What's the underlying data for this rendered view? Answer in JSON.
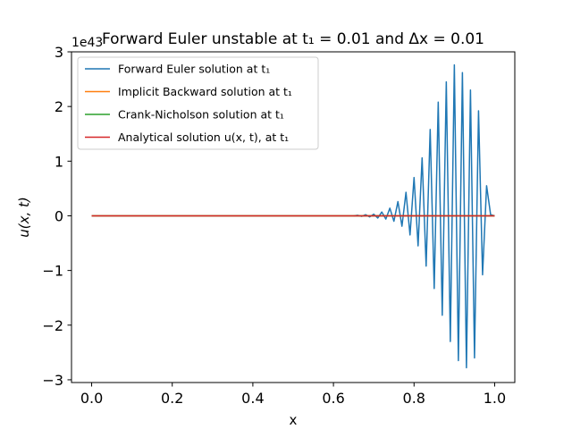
{
  "chart_data": {
    "type": "line",
    "title": "Forward Euler unstable at t₁ = 0.01 and Δx = 0.01",
    "xlabel": "x",
    "ylabel": "u(x, t)",
    "offset_text": "1e43",
    "xlim": [
      -0.05,
      1.05
    ],
    "ylim": [
      -3.05,
      3.0
    ],
    "xticks": [
      0.0,
      0.2,
      0.4,
      0.6,
      0.8,
      1.0
    ],
    "xtick_labels": [
      "0.0",
      "0.2",
      "0.4",
      "0.6",
      "0.8",
      "1.0"
    ],
    "yticks": [
      3,
      2,
      1,
      0,
      -1,
      -2,
      -3
    ],
    "ytick_labels": [
      "3",
      "2",
      "1",
      "0",
      "−1",
      "−2",
      "−3"
    ],
    "grid": false,
    "legend_position": "upper-left",
    "series": [
      {
        "name": "Forward Euler solution at t₁",
        "color": "#1f77b4",
        "x": [
          0.65,
          0.66,
          0.67,
          0.68,
          0.69,
          0.7,
          0.71,
          0.72,
          0.73,
          0.74,
          0.75,
          0.76,
          0.77,
          0.78,
          0.79,
          0.8,
          0.81,
          0.82,
          0.83,
          0.84,
          0.85,
          0.86,
          0.87,
          0.88,
          0.89,
          0.9,
          0.91,
          0.92,
          0.93,
          0.94,
          0.95,
          0.96,
          0.97,
          0.98,
          0.99,
          1.0
        ],
        "y": [
          0,
          0.01,
          -0.01,
          0.02,
          -0.02,
          0.03,
          -0.04,
          0.07,
          -0.06,
          0.14,
          -0.1,
          0.26,
          -0.19,
          0.43,
          -0.35,
          0.7,
          -0.55,
          1.06,
          -0.92,
          1.58,
          -1.33,
          2.08,
          -1.82,
          2.45,
          -2.3,
          2.76,
          -2.65,
          2.62,
          -2.78,
          2.3,
          -2.6,
          1.92,
          -1.08,
          0.55,
          0.02,
          0.0
        ]
      },
      {
        "name": "Implicit Backward solution at t₁",
        "color": "#ff7f0e",
        "x": [
          0.0,
          1.0
        ],
        "y": [
          0,
          0
        ]
      },
      {
        "name": "Crank-Nicholson solution at t₁",
        "color": "#2ca02c",
        "x": [
          0.0,
          1.0
        ],
        "y": [
          0,
          0
        ]
      },
      {
        "name": "Analytical solution u(x, t), at t₁",
        "color": "#d62728",
        "x": [
          0.0,
          1.0
        ],
        "y": [
          0,
          0
        ]
      }
    ]
  }
}
